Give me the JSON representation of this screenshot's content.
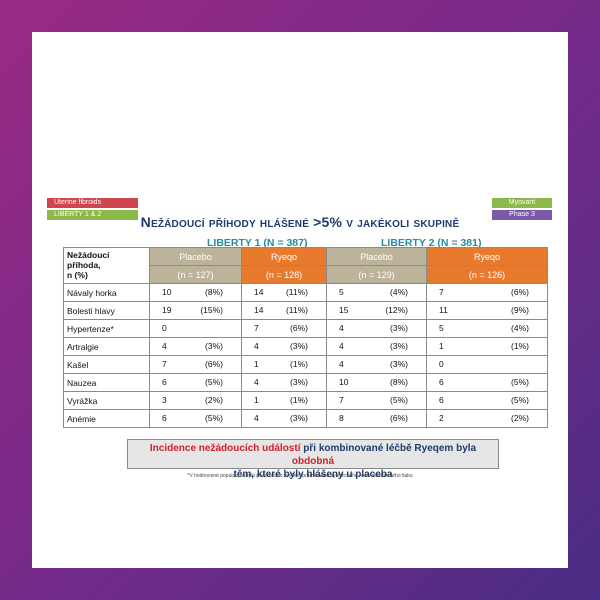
{
  "tags": {
    "uterine": "Uterine fibroids",
    "liberty12": "LIBERTY 1 & 2",
    "myovant": "Myovant",
    "phase": "Phase 3",
    "colors": {
      "red": "#d1454f",
      "green": "#8db84a",
      "purple": "#7a5aa8"
    }
  },
  "title": "Nežádoucí příhody hlášené >5% v jakékoli skupině",
  "liberty1": "LIBERTY 1 (N = 387)",
  "liberty2": "LIBERTY 2 (N = 381)",
  "table": {
    "header_label": [
      "Nežádoucí",
      "příhoda,",
      "n (%)"
    ],
    "groups": [
      {
        "name": "Placebo",
        "n": "(n = 127)"
      },
      {
        "name": "Ryeqo",
        "n": "(n = 128)"
      },
      {
        "name": "Placebo",
        "n": "(n = 129)"
      },
      {
        "name": "Ryeqo",
        "n": "(n = 126)"
      }
    ],
    "rows": [
      {
        "label": "Návaly horka",
        "cells": [
          [
            "10",
            "(8%)"
          ],
          [
            "14",
            "(11%)"
          ],
          [
            "5",
            "(4%)"
          ],
          [
            "7",
            "(6%)"
          ]
        ]
      },
      {
        "label": "Bolesti hlavy",
        "cells": [
          [
            "19",
            "(15%)"
          ],
          [
            "14",
            "(11%)"
          ],
          [
            "15",
            "(12%)"
          ],
          [
            "11",
            "(9%)"
          ]
        ]
      },
      {
        "label": "Hypertenze*",
        "cells": [
          [
            "0",
            ""
          ],
          [
            "7",
            "(6%)"
          ],
          [
            "4",
            "(3%)"
          ],
          [
            "5",
            "(4%)"
          ]
        ]
      },
      {
        "label": "Artralgie",
        "cells": [
          [
            "4",
            "(3%)"
          ],
          [
            "4",
            "(3%)"
          ],
          [
            "4",
            "(3%)"
          ],
          [
            "1",
            "(1%)"
          ]
        ]
      },
      {
        "label": "Kašel",
        "cells": [
          [
            "7",
            "(6%)"
          ],
          [
            "1",
            "(1%)"
          ],
          [
            "4",
            "(3%)"
          ],
          [
            "0",
            ""
          ]
        ]
      },
      {
        "label": "Nauzea",
        "cells": [
          [
            "6",
            "(5%)"
          ],
          [
            "4",
            "(3%)"
          ],
          [
            "10",
            "(8%)"
          ],
          [
            "6",
            "(5%)"
          ]
        ]
      },
      {
        "label": "Vyrážka",
        "cells": [
          [
            "3",
            "(2%)"
          ],
          [
            "1",
            "(1%)"
          ],
          [
            "7",
            "(5%)"
          ],
          [
            "6",
            "(5%)"
          ]
        ]
      },
      {
        "label": "Anémie",
        "cells": [
          [
            "6",
            "(5%)"
          ],
          [
            "4",
            "(3%)"
          ],
          [
            "8",
            "(6%)"
          ],
          [
            "2",
            "(2%)"
          ]
        ]
      }
    ]
  },
  "note": {
    "part1": "Incidence nežádoucích událostí",
    "part2": " při kombinované léčbě Ryeqem byla ",
    "part3": "obdobná",
    "line2": "těm, které byly hlášeny u placeba"
  },
  "footnote": "*V hodnocené populaci nebylo pozorováno zvýšení průměrného systolického nebo diastolického tlaku"
}
